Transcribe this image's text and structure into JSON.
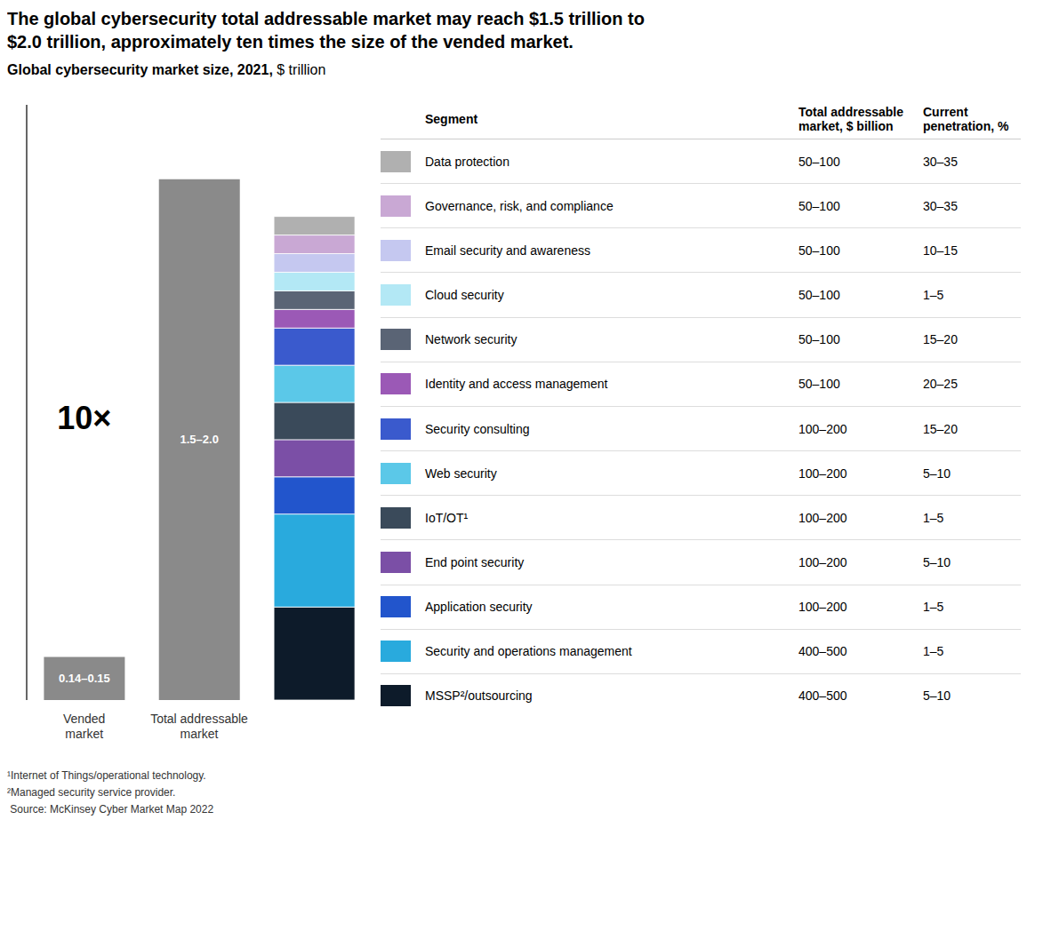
{
  "chart_data": {
    "type": "bar",
    "title": "The global cybersecurity total addressable market may reach $1.5 trillion to\n$2.0 trillion, approximately ten times the size of the vended market.",
    "subtitle": [
      "Global cybersecurity market size, 2021,",
      " $ trillion"
    ],
    "categories": [
      "Vended\nmarket",
      "Total addressable\nmarket",
      null
    ],
    "stacked": true,
    "ylim": [
      0,
      2.0
    ],
    "tick_labels": false,
    "annotation": "10×",
    "columns": [
      "Segment",
      "Total addressable\nmarket, $ billion",
      "Current\npenetration, %"
    ],
    "series": [
      {
        "color": "#8a8a8a",
        "values": [
          0.145,
          1.75,
          null
        ],
        "value_labels": [
          "0.14–0.15",
          "1.5–2.0",
          null
        ],
        "data_labels": true
      },
      {
        "name": "Data protection",
        "color": "#b0b0b0",
        "tam": "50–100",
        "penetration": "30–35",
        "values": [
          null,
          null,
          0.0625
        ]
      },
      {
        "name": "Governance, risk, and compliance",
        "color": "#c9a8d4",
        "tam": "50–100",
        "penetration": "30–35",
        "values": [
          null,
          null,
          0.0625
        ]
      },
      {
        "name": "Email security and awareness",
        "color": "#c5c8f0",
        "tam": "50–100",
        "penetration": "10–15",
        "values": [
          null,
          null,
          0.0625
        ]
      },
      {
        "name": "Cloud security",
        "color": "#b3e8f5",
        "tam": "50–100",
        "penetration": "1–5",
        "values": [
          null,
          null,
          0.0625
        ]
      },
      {
        "name": "Network security",
        "color": "#5a6475",
        "tam": "50–100",
        "penetration": "15–20",
        "values": [
          null,
          null,
          0.0625
        ]
      },
      {
        "name": "Identity and access management",
        "color": "#9b59b6",
        "tam": "50–100",
        "penetration": "20–25",
        "values": [
          null,
          null,
          0.0625
        ]
      },
      {
        "name": "Security consulting",
        "color": "#3a5acd",
        "tam": "100–200",
        "penetration": "15–20",
        "values": [
          null,
          null,
          0.125
        ]
      },
      {
        "name": "Web security",
        "color": "#5bc8e8",
        "tam": "100–200",
        "penetration": "5–10",
        "values": [
          null,
          null,
          0.125
        ]
      },
      {
        "name": "IoT/OT¹",
        "color": "#3a4a5a",
        "tam": "100–200",
        "penetration": "1–5",
        "values": [
          null,
          null,
          0.125
        ]
      },
      {
        "name": "End point security",
        "color": "#7b4fa6",
        "tam": "100–200",
        "penetration": "5–10",
        "values": [
          null,
          null,
          0.125
        ]
      },
      {
        "name": "Application security",
        "color": "#2255cc",
        "tam": "100–200",
        "penetration": "1–5",
        "values": [
          null,
          null,
          0.125
        ]
      },
      {
        "name": "Security and operations management",
        "color": "#29aadd",
        "tam": "400–500",
        "penetration": "1–5",
        "values": [
          null,
          null,
          0.3125
        ]
      },
      {
        "name": "MSSP²/outsourcing",
        "color": "#0d1b2a",
        "tam": "400–500",
        "penetration": "5–10",
        "values": [
          null,
          null,
          0.3125
        ]
      }
    ],
    "footnotes": [
      "¹Internet of Things/operational technology.",
      "²Managed security service provider.",
      " Source: McKinsey Cyber Market Map 2022"
    ]
  }
}
